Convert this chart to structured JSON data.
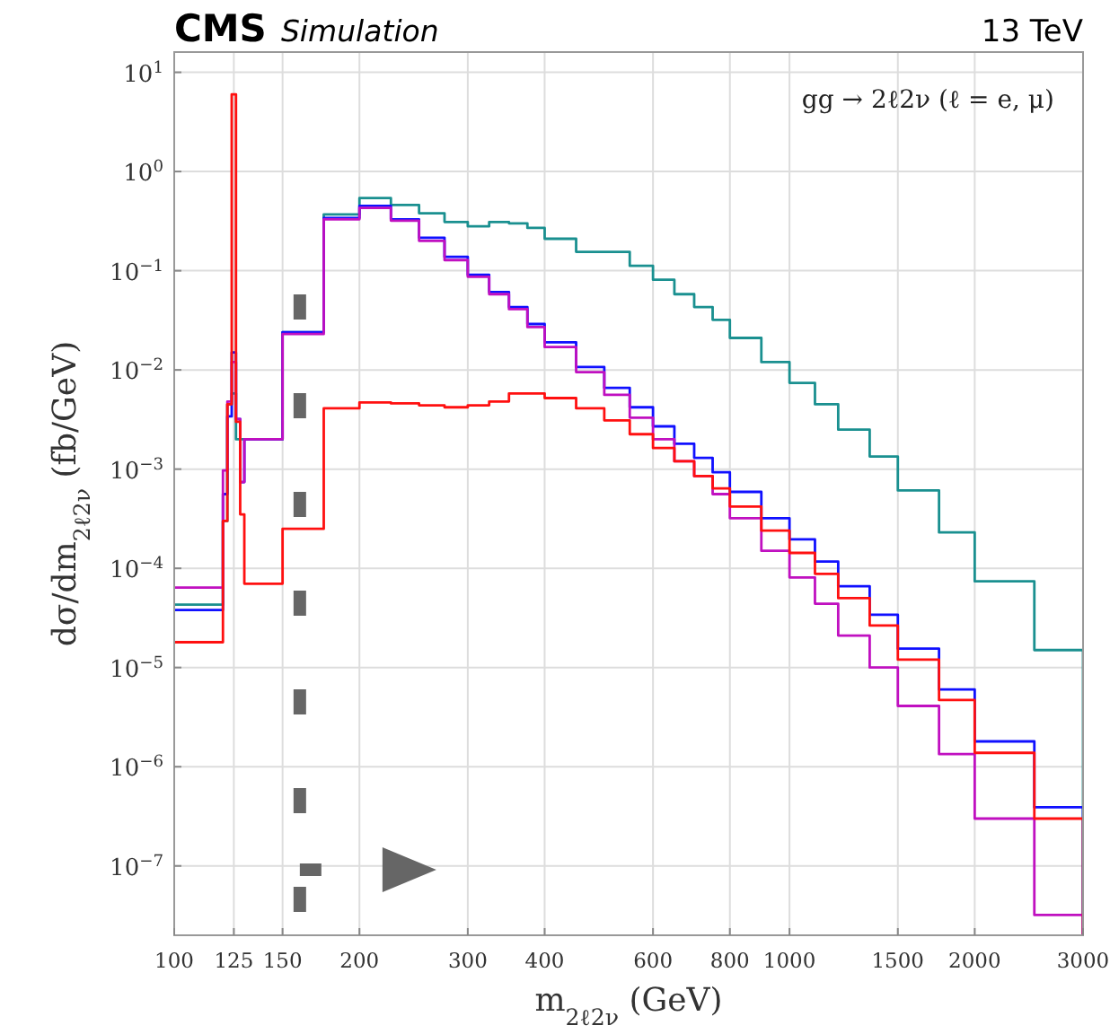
{
  "chart_data": {
    "type": "histogram",
    "title": "CMS",
    "subtitle": "Simulation",
    "xlabel": "m$_{2ℓ2ν}$ (GeV)",
    "ylabel": "dσ/dm$_{2ℓ2ν}$ (fb/GeV)",
    "annotations": [
      "13 TeV",
      "gg → 2ℓ2ν (ℓ = e, μ)"
    ],
    "log": "xy",
    "grid": true,
    "xlim": [
      100,
      3000
    ],
    "ylim": [
      2e-08,
      16
    ],
    "xticks": [
      100,
      125,
      150,
      200,
      300,
      400,
      600,
      800,
      1000,
      1500,
      2000,
      3000
    ],
    "yticks": [
      {
        "value": 1e-07,
        "label": "10$^{−7}$"
      },
      {
        "value": 1e-06,
        "label": "10$^{−6}$"
      },
      {
        "value": 1e-05,
        "label": "10$^{−5}$"
      },
      {
        "value": 0.0001,
        "label": "10$^{−4}$"
      },
      {
        "value": 0.001,
        "label": "10$^{−3}$"
      },
      {
        "value": 0.01,
        "label": "10$^{−2}$"
      },
      {
        "value": 0.1,
        "label": "10$^{−1}$"
      },
      {
        "value": 1,
        "label": "10$^{0}$"
      },
      {
        "value": 10,
        "label": "10$^{1}$"
      }
    ],
    "bins": [
      100,
      120,
      122,
      124,
      126,
      128,
      130,
      150,
      175,
      200,
      225,
      250,
      275,
      300,
      325,
      350,
      375,
      400,
      450,
      500,
      550,
      600,
      650,
      700,
      750,
      800,
      900,
      1000,
      1100,
      1200,
      1350,
      1500,
      1750,
      2000,
      2500,
      3000
    ],
    "ref_lines": [
      {
        "axis": "x",
        "value": 160,
        "color": "#666666",
        "line_style": "dashed"
      }
    ],
    "series": [
      {
        "color": "#1a9090",
        "values": [
          4.3e-05,
          0.0003,
          0.0045,
          0.0058,
          0.002,
          0.002,
          0.002,
          0.024,
          0.37,
          0.54,
          0.46,
          0.38,
          0.31,
          0.28,
          0.31,
          0.3,
          0.27,
          0.21,
          0.155,
          0.155,
          0.112,
          0.081,
          0.058,
          0.043,
          0.032,
          0.021,
          0.012,
          0.0074,
          0.0045,
          0.0025,
          0.00134,
          0.00061,
          0.00023,
          7.4e-05,
          1.5e-05
        ]
      },
      {
        "color": "#1010ff",
        "values": [
          3.8e-05,
          0.00056,
          0.0034,
          0.015,
          0.0032,
          0.00074,
          0.002,
          0.024,
          0.34,
          0.45,
          0.33,
          0.215,
          0.138,
          0.091,
          0.061,
          0.043,
          0.029,
          0.019,
          0.0107,
          0.0066,
          0.0042,
          0.0027,
          0.0018,
          0.0013,
          0.00093,
          0.00059,
          0.00032,
          0.000196,
          0.000117,
          6.6e-05,
          3.4e-05,
          1.55e-05,
          6e-06,
          1.8e-06,
          3.9e-07
        ]
      },
      {
        "color": "#c010c0",
        "values": [
          6.4e-05,
          0.00097,
          0.0048,
          0.012,
          0.0032,
          0.00074,
          0.002,
          0.023,
          0.33,
          0.43,
          0.32,
          0.2,
          0.128,
          0.087,
          0.058,
          0.041,
          0.027,
          0.017,
          0.0095,
          0.0056,
          0.0033,
          0.002,
          0.0012,
          0.00085,
          0.00056,
          0.00032,
          0.00015,
          8.1e-05,
          4.4e-05,
          2.1e-05,
          1e-05,
          4.1e-06,
          1.34e-06,
          3e-07,
          3.2e-08
        ]
      },
      {
        "color": "#ff1010",
        "values": [
          1.8e-05,
          0.0003,
          0.0045,
          6,
          0.003,
          0.00035,
          7e-05,
          0.00025,
          0.0041,
          0.0047,
          0.0046,
          0.0044,
          0.0042,
          0.0044,
          0.0048,
          0.0058,
          0.0058,
          0.0052,
          0.0041,
          0.0031,
          0.00225,
          0.00163,
          0.0012,
          0.00085,
          0.00064,
          0.00042,
          0.00024,
          0.000143,
          8.8e-05,
          5e-05,
          2.65e-05,
          1.2e-05,
          4.7e-06,
          1.38e-06,
          3e-07
        ]
      }
    ]
  }
}
